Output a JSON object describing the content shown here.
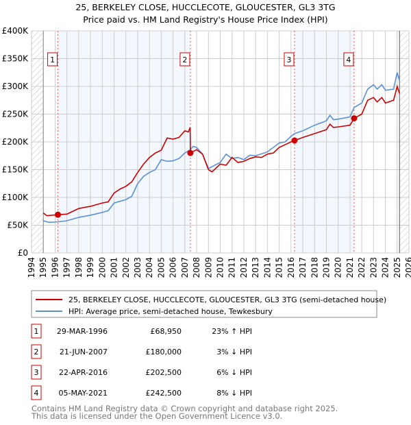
{
  "chart_data": {
    "type": "line",
    "title": "25, BERKELEY CLOSE, HUCCLECOTE, GLOUCESTER, GL3 3TG",
    "subtitle": "Price paid vs. HM Land Registry's House Price Index (HPI)",
    "xlim": [
      1994,
      2026
    ],
    "ylim": [
      0,
      400000
    ],
    "x_ticks": [
      "1994",
      "1995",
      "1996",
      "1997",
      "1998",
      "1999",
      "2000",
      "2001",
      "2002",
      "2003",
      "2004",
      "2005",
      "2006",
      "2007",
      "2008",
      "2009",
      "2010",
      "2011",
      "2012",
      "2013",
      "2014",
      "2015",
      "2016",
      "2017",
      "2018",
      "2019",
      "2020",
      "2021",
      "2022",
      "2023",
      "2024",
      "2025",
      "2026"
    ],
    "y_ticks": [
      {
        "v": 0,
        "label": "£0"
      },
      {
        "v": 50000,
        "label": "£50K"
      },
      {
        "v": 100000,
        "label": "£100K"
      },
      {
        "v": 150000,
        "label": "£150K"
      },
      {
        "v": 200000,
        "label": "£200K"
      },
      {
        "v": 250000,
        "label": "£250K"
      },
      {
        "v": 300000,
        "label": "£300K"
      },
      {
        "v": 350000,
        "label": "£350K"
      },
      {
        "v": 400000,
        "label": "£400K"
      }
    ],
    "grid": true,
    "data_range": [
      1995,
      2025.2
    ],
    "series": [
      {
        "name": "25, BERKELEY CLOSE, HUCCLECOTE, GLOUCESTER, GL3 3TG (semi-detached house)",
        "color": "#cc0000",
        "points": [
          [
            1995,
            72000
          ],
          [
            1995.3,
            67000
          ],
          [
            1996.24,
            68950
          ],
          [
            1997,
            70000
          ],
          [
            1997.5,
            75000
          ],
          [
            1998,
            80000
          ],
          [
            1999,
            84000
          ],
          [
            2000,
            90000
          ],
          [
            2000.5,
            92000
          ],
          [
            2001,
            108000
          ],
          [
            2001.5,
            115000
          ],
          [
            2002,
            120000
          ],
          [
            2002.5,
            128000
          ],
          [
            2003,
            145000
          ],
          [
            2003.5,
            160000
          ],
          [
            2004,
            172000
          ],
          [
            2004.5,
            180000
          ],
          [
            2005,
            185000
          ],
          [
            2005.5,
            207000
          ],
          [
            2006,
            205000
          ],
          [
            2006.5,
            208000
          ],
          [
            2007,
            220000
          ],
          [
            2007.3,
            218000
          ],
          [
            2007.45,
            226000
          ],
          [
            2007.47,
            180000
          ],
          [
            2008,
            186000
          ],
          [
            2008.5,
            178000
          ],
          [
            2009,
            150000
          ],
          [
            2009.3,
            146000
          ],
          [
            2010,
            160000
          ],
          [
            2010.5,
            158000
          ],
          [
            2011,
            172000
          ],
          [
            2011.5,
            163000
          ],
          [
            2012,
            165000
          ],
          [
            2012.5,
            170000
          ],
          [
            2013,
            173000
          ],
          [
            2013.5,
            172000
          ],
          [
            2014,
            178000
          ],
          [
            2014.5,
            180000
          ],
          [
            2015,
            190000
          ],
          [
            2015.5,
            195000
          ],
          [
            2016,
            200000
          ],
          [
            2016.3,
            202500
          ],
          [
            2017,
            208000
          ],
          [
            2018,
            215000
          ],
          [
            2019,
            222000
          ],
          [
            2019.3,
            232000
          ],
          [
            2019.6,
            226000
          ],
          [
            2020,
            227000
          ],
          [
            2021,
            230000
          ],
          [
            2021.35,
            242500
          ],
          [
            2022,
            250000
          ],
          [
            2022.5,
            275000
          ],
          [
            2023,
            280000
          ],
          [
            2023.3,
            272000
          ],
          [
            2023.7,
            280000
          ],
          [
            2024,
            270000
          ],
          [
            2024.7,
            275000
          ],
          [
            2025,
            300000
          ],
          [
            2025.2,
            287000
          ]
        ]
      },
      {
        "name": "HPI: Average price, semi-detached house, Tewkesbury",
        "color": "#5b8fd6",
        "points": [
          [
            1995,
            58000
          ],
          [
            1995.5,
            55000
          ],
          [
            1996.24,
            56000
          ],
          [
            1997,
            58000
          ],
          [
            1998,
            64000
          ],
          [
            1999,
            68000
          ],
          [
            2000,
            73000
          ],
          [
            2000.5,
            76000
          ],
          [
            2001,
            90000
          ],
          [
            2002,
            96000
          ],
          [
            2002.5,
            102000
          ],
          [
            2003,
            125000
          ],
          [
            2003.5,
            138000
          ],
          [
            2004,
            145000
          ],
          [
            2004.5,
            150000
          ],
          [
            2005,
            168000
          ],
          [
            2005.5,
            165000
          ],
          [
            2006,
            166000
          ],
          [
            2006.5,
            170000
          ],
          [
            2007,
            180000
          ],
          [
            2007.47,
            186000
          ],
          [
            2007.7,
            192000
          ],
          [
            2008,
            190000
          ],
          [
            2008.5,
            178000
          ],
          [
            2009,
            152000
          ],
          [
            2010,
            163000
          ],
          [
            2010.5,
            178000
          ],
          [
            2011,
            170000
          ],
          [
            2011.5,
            172000
          ],
          [
            2012,
            168000
          ],
          [
            2012.5,
            176000
          ],
          [
            2013,
            175000
          ],
          [
            2014,
            182000
          ],
          [
            2014.5,
            190000
          ],
          [
            2015,
            198000
          ],
          [
            2015.5,
            200000
          ],
          [
            2016,
            210000
          ],
          [
            2016.3,
            215000
          ],
          [
            2017,
            220000
          ],
          [
            2018,
            230000
          ],
          [
            2019,
            238000
          ],
          [
            2019.3,
            248000
          ],
          [
            2019.6,
            240000
          ],
          [
            2020,
            241000
          ],
          [
            2021,
            245000
          ],
          [
            2021.35,
            262000
          ],
          [
            2022,
            270000
          ],
          [
            2022.5,
            295000
          ],
          [
            2023,
            303000
          ],
          [
            2023.3,
            295000
          ],
          [
            2023.7,
            303000
          ],
          [
            2024,
            293000
          ],
          [
            2024.7,
            295000
          ],
          [
            2025,
            325000
          ],
          [
            2025.2,
            310000
          ]
        ]
      }
    ],
    "sales": [
      {
        "id": "1",
        "year": 1996.24,
        "price": 68950,
        "date": "29-MAR-1996",
        "price_label": "£68,950",
        "hpi": "23% ↑ HPI"
      },
      {
        "id": "2",
        "year": 2007.47,
        "price": 180000,
        "date": "21-JUN-2007",
        "price_label": "£180,000",
        "hpi": "3% ↓ HPI"
      },
      {
        "id": "3",
        "year": 2016.3,
        "price": 202500,
        "date": "22-APR-2016",
        "price_label": "£202,500",
        "hpi": "6% ↓ HPI"
      },
      {
        "id": "4",
        "year": 2021.35,
        "price": 242500,
        "date": "05-MAY-2021",
        "price_label": "£242,500",
        "hpi": "8% ↓ HPI"
      }
    ],
    "legend_position": "below"
  },
  "footer": {
    "line1": "Contains HM Land Registry data © Crown copyright and database right 2025.",
    "line2": "This data is licensed under the Open Government Licence v3.0."
  }
}
